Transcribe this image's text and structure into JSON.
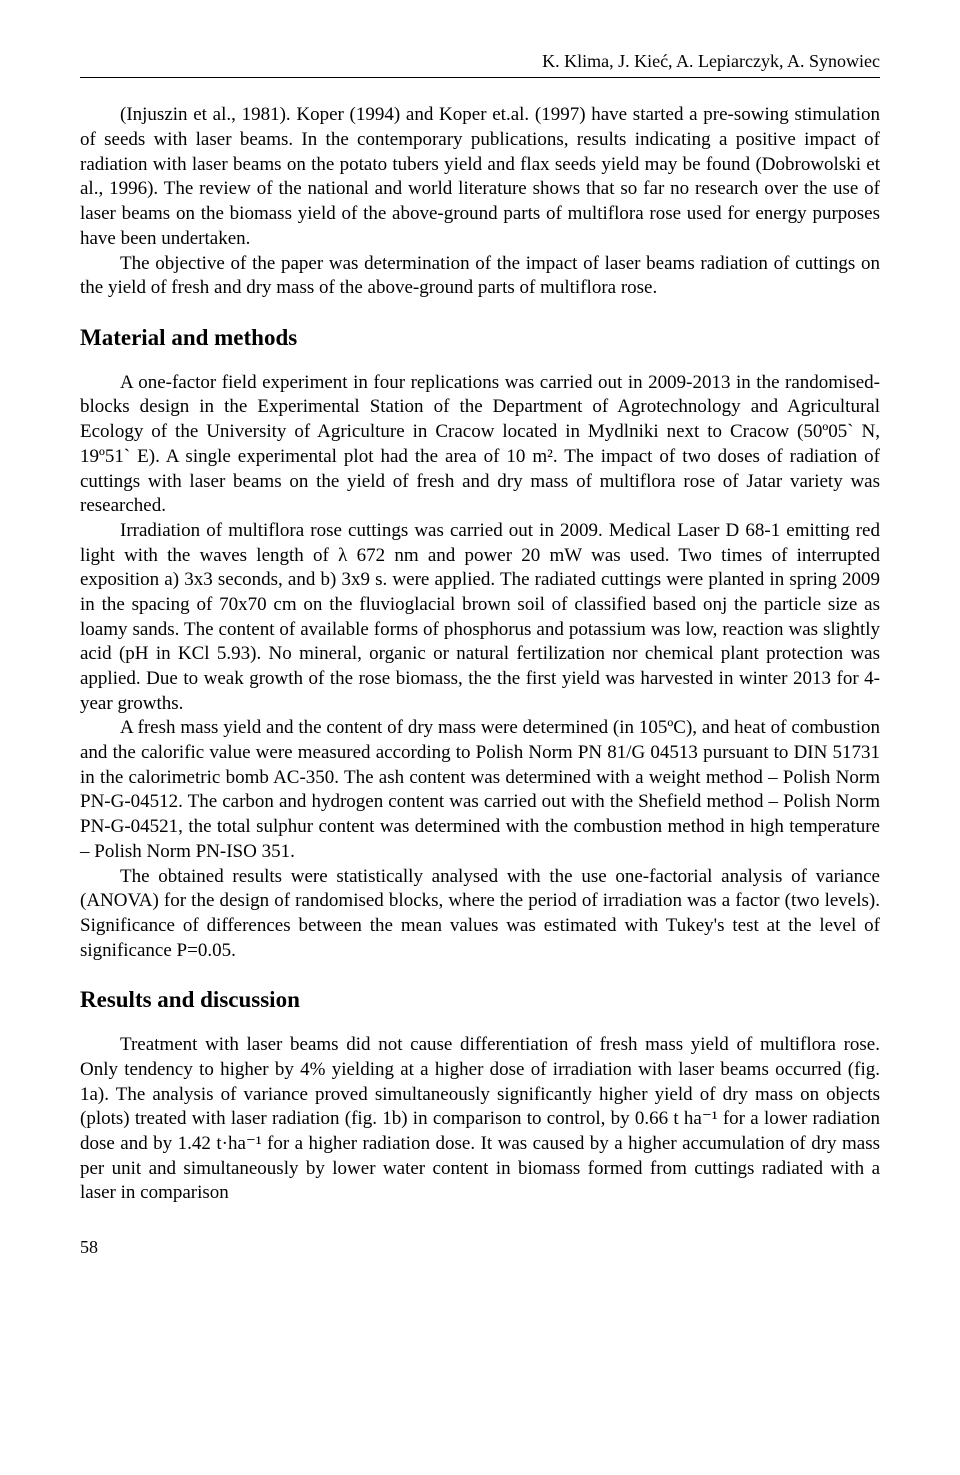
{
  "header": {
    "authors": "K. Klima, J. Kieć, A. Lepiarczyk, A. Synowiec"
  },
  "intro": {
    "para1": "(Injuszin et al., 1981). Koper (1994) and Koper et.al. (1997) have started a pre-sowing stimulation of seeds with laser beams. In the contemporary publications, results indicating a positive impact of radiation with laser beams on the potato tubers yield and flax seeds yield may be found (Dobrowolski et al., 1996). The review of the national and world literature shows that so far no research over the use of laser beams on the biomass yield of the above-ground parts of multiflora rose used for energy purposes have been undertaken.",
    "para2": "The objective of the paper was determination of the impact of laser beams radiation of cuttings on the yield of fresh and dry mass of the above-ground parts of multiflora rose."
  },
  "materials": {
    "heading": "Material and methods",
    "para1": "A one-factor field experiment in four replications was carried out in 2009-2013 in the randomised-blocks design in the Experimental Station of the Department of Agrotechnology and Agricultural Ecology of the University of Agriculture in Cracow located in Mydlniki next to Cracow (50º05` N, 19º51` E). A single experimental plot had the area of 10 m². The impact of two doses of radiation of cuttings with laser beams on the yield of fresh and dry mass of multiflora rose of Jatar variety was researched.",
    "para2": "Irradiation of multiflora rose cuttings was carried out in 2009. Medical Laser D 68-1 emitting red light with the waves length of λ 672 nm and power 20 mW was used. Two times of interrupted exposition a) 3x3 seconds, and b) 3x9 s. were applied. The radiated cuttings were planted in spring 2009 in the spacing of 70x70 cm on the fluvioglacial brown soil of classified based onj the particle size as loamy sands. The content of available forms of phosphorus and potassium was low, reaction was slightly acid (pH in KCl 5.93). No mineral, organic or natural fertilization nor chemical plant protection was applied. Due to weak growth of the rose biomass, the the first yield was harvested in winter 2013 for 4-year growths.",
    "para3": "A fresh mass yield and the content of dry mass were determined (in 105ºC), and heat of combustion and the calorific value were measured according to Polish Norm PN 81/G 04513 pursuant to DIN 51731 in the calorimetric bomb AC-350. The ash content was determined with a weight method – Polish Norm PN-G-04512. The carbon and hydrogen content was carried out with the Shefield method – Polish Norm PN-G-04521, the total sulphur content was determined with the combustion method in high temperature – Polish Norm PN-ISO 351.",
    "para4": "The obtained results were statistically analysed with the use one-factorial analysis of variance (ANOVA) for the design of randomised blocks, where the period of irradiation was a factor (two levels). Significance of differences between the mean values was estimated with Tukey's test at the level of significance P=0.05."
  },
  "results": {
    "heading": "Results and discussion",
    "para1": "Treatment with laser beams did not cause differentiation of fresh mass yield of multiflora rose. Only tendency to higher by 4% yielding at a higher dose of irradiation with laser beams occurred (fig. 1a). The analysis of variance proved simultaneously significantly higher yield of dry mass on objects (plots) treated with laser radiation (fig. 1b) in comparison to control, by 0.66 t ha⁻¹ for a lower radiation dose and by 1.42 t·ha⁻¹ for a higher radiation dose. It was caused by a higher accumulation of dry mass per unit and simultaneously by lower water content in biomass formed from cuttings radiated with a laser in comparison"
  },
  "footer": {
    "page_number": "58"
  }
}
